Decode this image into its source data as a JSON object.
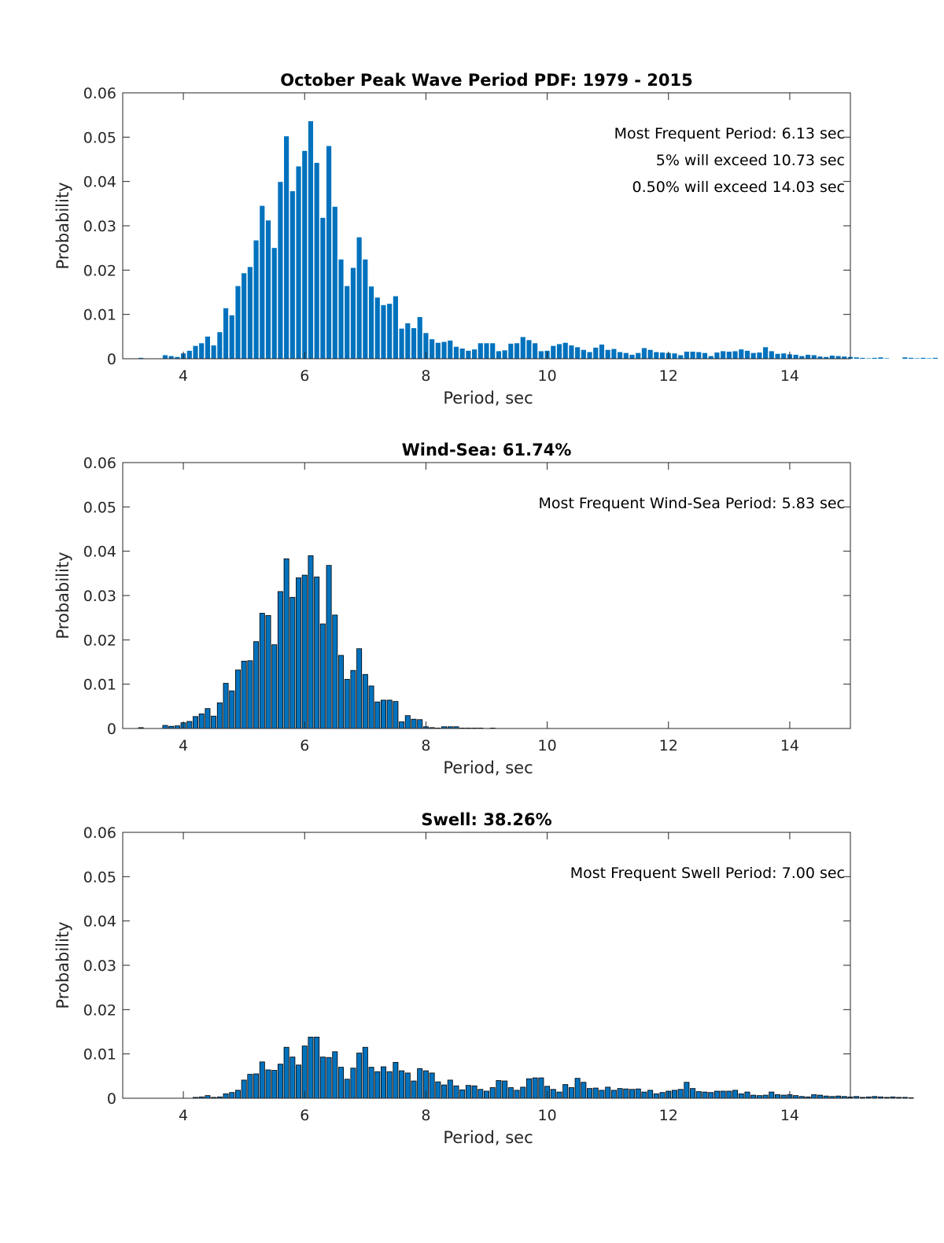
{
  "figure": {
    "title": "October Peak Wave Period PDF: 1979 - 2015",
    "bar_color": "#0072bd",
    "edge_color": "#000000"
  },
  "chart_data": [
    {
      "type": "bar",
      "title": "October Peak Wave Period PDF: 1979 - 2015",
      "xlabel": "Period, sec",
      "ylabel": "Probability",
      "xlim": [
        3.0,
        15.0
      ],
      "ylim": [
        0,
        0.06
      ],
      "xticks": [
        4,
        6,
        8,
        10,
        12,
        14
      ],
      "yticks": [
        0,
        0.01,
        0.02,
        0.03,
        0.04,
        0.05,
        0.06
      ],
      "ytick_labels": [
        "0",
        "0.01",
        "0.02",
        "0.03",
        "0.04",
        "0.05",
        "0.06"
      ],
      "bar_start": 3.3,
      "bar_step": 0.1,
      "edged": false,
      "annotations": [
        "Most Frequent Period: 6.13 sec",
        "5% will exceed 10.73 sec",
        "0.50% will exceed 14.03 sec"
      ],
      "values": [
        0.0002,
        0,
        0,
        0,
        0.0008,
        0.0006,
        0.0004,
        0.0012,
        0.0018,
        0.0029,
        0.0035,
        0.005,
        0.003,
        0.006,
        0.0114,
        0.0098,
        0.0164,
        0.0193,
        0.0207,
        0.0267,
        0.0345,
        0.0312,
        0.025,
        0.0399,
        0.0502,
        0.0378,
        0.0434,
        0.0469,
        0.0536,
        0.0442,
        0.0318,
        0.048,
        0.0343,
        0.0224,
        0.0164,
        0.0205,
        0.0274,
        0.0224,
        0.0163,
        0.0138,
        0.0121,
        0.0124,
        0.0141,
        0.0068,
        0.008,
        0.0069,
        0.0094,
        0.0058,
        0.0044,
        0.0036,
        0.0038,
        0.0041,
        0.0027,
        0.0023,
        0.0018,
        0.0021,
        0.0035,
        0.0035,
        0.0035,
        0.0017,
        0.0019,
        0.0034,
        0.0035,
        0.0049,
        0.0042,
        0.0035,
        0.0017,
        0.0018,
        0.0029,
        0.0033,
        0.0036,
        0.003,
        0.0026,
        0.002,
        0.0015,
        0.0025,
        0.0032,
        0.002,
        0.0022,
        0.0015,
        0.0013,
        0.0009,
        0.0013,
        0.0024,
        0.002,
        0.0015,
        0.0014,
        0.0013,
        0.0012,
        0.0008,
        0.0016,
        0.0016,
        0.0015,
        0.0013,
        0.0006,
        0.0014,
        0.0017,
        0.0016,
        0.0017,
        0.0021,
        0.0018,
        0.0013,
        0.0014,
        0.0026,
        0.0017,
        0.0011,
        0.0012,
        0.001,
        0.0009,
        0.0006,
        0.0009,
        0.0008,
        0.0005,
        0.0004,
        0.0007,
        0.0006,
        0.0005,
        0.0004,
        0.0003,
        0.0002,
        0.0001,
        0.0002,
        0.0003,
        0.0001,
        0,
        0,
        0.0003,
        0.0002,
        0.0001,
        0.0002,
        0.0001,
        0.0002
      ]
    },
    {
      "type": "bar",
      "title": "Wind-Sea: 61.74%",
      "xlabel": "Period, sec",
      "ylabel": "Probability",
      "xlim": [
        3.0,
        15.0
      ],
      "ylim": [
        0,
        0.06
      ],
      "xticks": [
        4,
        6,
        8,
        10,
        12,
        14
      ],
      "yticks": [
        0,
        0.01,
        0.02,
        0.03,
        0.04,
        0.05,
        0.06
      ],
      "ytick_labels": [
        "0",
        "0.01",
        "0.02",
        "0.03",
        "0.04",
        "0.05",
        "0.06"
      ],
      "bar_start": 3.3,
      "bar_step": 0.1,
      "edged": true,
      "annotations": [
        "Most Frequent Wind-Sea Period: 5.83 sec"
      ],
      "values": [
        0.0002,
        0,
        0,
        0,
        0.0007,
        0.0005,
        0.0006,
        0.0013,
        0.0016,
        0.0027,
        0.0033,
        0.0045,
        0.0028,
        0.0058,
        0.0102,
        0.0085,
        0.0132,
        0.0152,
        0.0153,
        0.0196,
        0.026,
        0.0255,
        0.0189,
        0.0309,
        0.0383,
        0.0296,
        0.034,
        0.0346,
        0.039,
        0.0342,
        0.0236,
        0.0368,
        0.0256,
        0.0165,
        0.0111,
        0.0131,
        0.018,
        0.0122,
        0.0096,
        0.006,
        0.0064,
        0.0064,
        0.0061,
        0.0015,
        0.0029,
        0.0021,
        0.002,
        0.0004,
        0.0002,
        0.0001,
        0.0004,
        0.0004,
        0.0004,
        0.0001,
        0.0001,
        0.0001,
        0.0001,
        0,
        0.0001,
        0,
        0,
        0,
        0,
        0,
        0,
        0,
        0,
        0,
        0,
        0,
        0,
        0,
        0,
        0,
        0,
        0,
        0,
        0,
        0,
        0,
        0,
        0,
        0,
        0,
        0,
        0,
        0,
        0,
        0,
        0,
        0,
        0,
        0,
        0,
        0,
        0,
        0,
        0,
        0,
        0,
        0,
        0,
        0,
        0,
        0,
        0,
        0,
        0,
        0,
        0,
        0,
        0,
        0,
        0,
        0,
        0,
        0,
        0,
        0,
        0,
        0,
        0,
        0,
        0,
        0,
        0,
        0,
        0,
        0,
        0,
        0,
        0,
        0
      ]
    },
    {
      "type": "bar",
      "title": "Swell: 38.26%",
      "xlabel": "Period, sec",
      "ylabel": "Probability",
      "xlim": [
        3.0,
        15.0
      ],
      "ylim": [
        0,
        0.06
      ],
      "xticks": [
        4,
        6,
        8,
        10,
        12,
        14
      ],
      "yticks": [
        0,
        0.01,
        0.02,
        0.03,
        0.04,
        0.05,
        0.06
      ],
      "ytick_labels": [
        "0",
        "0.01",
        "0.02",
        "0.03",
        "0.04",
        "0.05",
        "0.06"
      ],
      "bar_start": 3.3,
      "bar_step": 0.1,
      "edged": true,
      "annotations": [
        "Most Frequent Swell Period: 7.00 sec"
      ],
      "values": [
        0,
        0,
        0,
        0,
        0,
        0,
        0,
        0,
        0,
        0.0002,
        0.0003,
        0.0006,
        0.0002,
        0.0003,
        0.001,
        0.0013,
        0.0018,
        0.0041,
        0.0054,
        0.0055,
        0.0082,
        0.0064,
        0.0063,
        0.0077,
        0.0115,
        0.0093,
        0.0075,
        0.0118,
        0.0138,
        0.0138,
        0.0093,
        0.0092,
        0.0105,
        0.007,
        0.0043,
        0.0068,
        0.0102,
        0.0115,
        0.007,
        0.006,
        0.0071,
        0.006,
        0.0081,
        0.0062,
        0.0057,
        0.0039,
        0.0067,
        0.0062,
        0.0057,
        0.0037,
        0.003,
        0.0041,
        0.0028,
        0.0019,
        0.0029,
        0.0028,
        0.002,
        0.0016,
        0.0024,
        0.004,
        0.0039,
        0.0024,
        0.0018,
        0.0025,
        0.0044,
        0.0046,
        0.0046,
        0.0027,
        0.002,
        0.0014,
        0.0031,
        0.0024,
        0.0045,
        0.0036,
        0.0022,
        0.0023,
        0.0018,
        0.0025,
        0.0018,
        0.0022,
        0.0021,
        0.002,
        0.0021,
        0.0014,
        0.0018,
        0.001,
        0.0013,
        0.0016,
        0.0018,
        0.002,
        0.0036,
        0.0022,
        0.0015,
        0.0014,
        0.0013,
        0.0016,
        0.0016,
        0.0016,
        0.0018,
        0.001,
        0.0014,
        0.0007,
        0.0006,
        0.0007,
        0.0014,
        0.0008,
        0.0007,
        0.0008,
        0.0006,
        0.0004,
        0.0003,
        0.0008,
        0.0007,
        0.0005,
        0.0004,
        0.0005,
        0.0004,
        0.0003,
        0.0004,
        0.0002,
        0.0003,
        0.0004,
        0.0003,
        0.0002,
        0.0003,
        0.0002,
        0.0002,
        0.0001
      ]
    }
  ]
}
